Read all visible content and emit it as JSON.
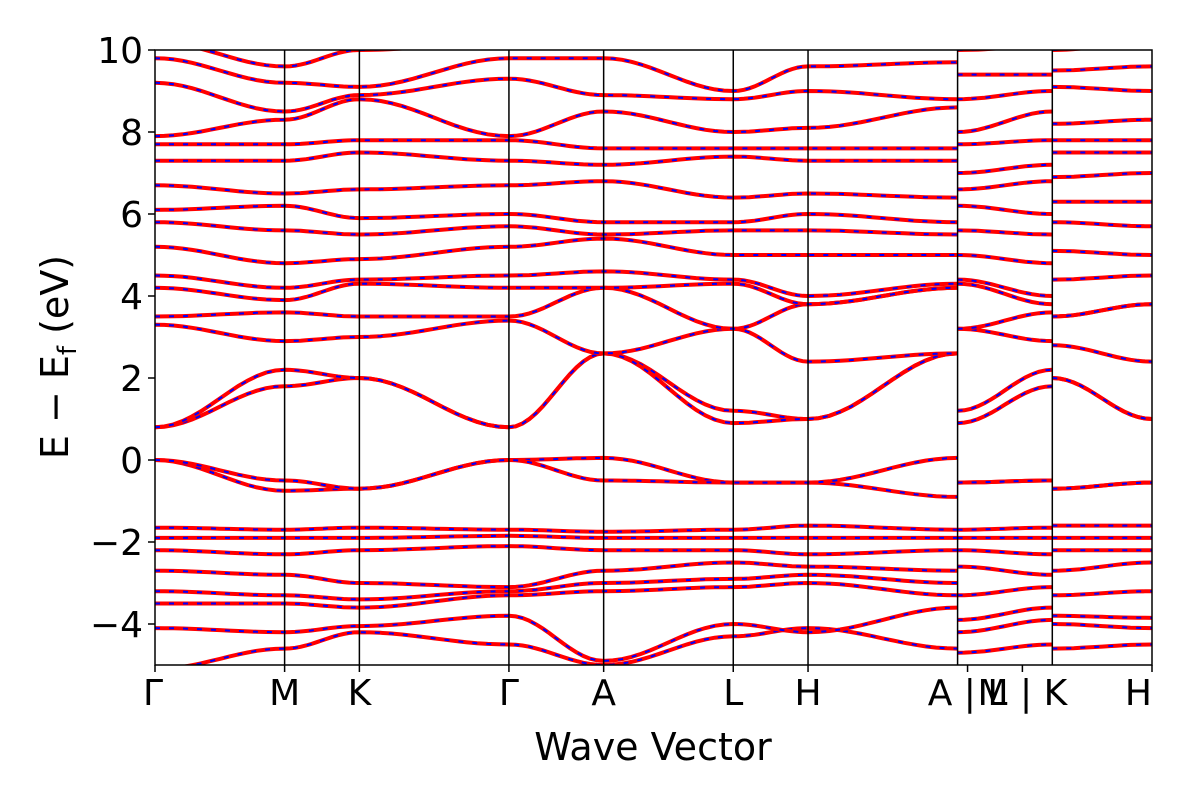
{
  "chart_data": {
    "type": "line",
    "title": "",
    "xlabel": "Wave Vector",
    "ylabel": "E − E",
    "ylabel_sub": "f",
    "ylabel_unit": " (eV)",
    "ylim": [
      -5,
      10
    ],
    "yticks": [
      {
        "value": 10,
        "label": "10"
      },
      {
        "value": 8,
        "label": "8"
      },
      {
        "value": 6,
        "label": "6"
      },
      {
        "value": 4,
        "label": "4"
      },
      {
        "value": 2,
        "label": "2"
      },
      {
        "value": 0,
        "label": "0"
      },
      {
        "value": -2,
        "label": "−2"
      },
      {
        "value": -4,
        "label": "−4"
      }
    ],
    "xlim": [
      0,
      10
    ],
    "kpoint_labels": [
      {
        "x": 0.0,
        "label": "Γ"
      },
      {
        "x": 1.3,
        "label": "M"
      },
      {
        "x": 2.05,
        "label": "K"
      },
      {
        "x": 3.55,
        "label": "Γ"
      },
      {
        "x": 4.5,
        "label": "A"
      },
      {
        "x": 5.8,
        "label": "L"
      },
      {
        "x": 6.55,
        "label": "H"
      },
      {
        "x": 8.15,
        "label": "A | L"
      },
      {
        "x": 8.7,
        "label": "M | K"
      },
      {
        "x": 10.0,
        "label": "H"
      }
    ],
    "vlines": [
      1.3,
      2.05,
      3.55,
      4.5,
      5.8,
      6.55,
      8.05,
      9.0
    ],
    "segment_breaks": [
      8.05,
      9.0
    ],
    "grid": false,
    "legend": "none",
    "series_colors": {
      "primary": "#ff0000",
      "overlay": "#0000ff"
    },
    "bands": [
      {
        "x": [
          0,
          1.3,
          2.05,
          3.55,
          4.5,
          5.8,
          6.55,
          8.05,
          8.05,
          9.0,
          9.0,
          10.0
        ],
        "y": [
          -5.1,
          -4.6,
          -4.2,
          -4.5,
          -5.0,
          -4.3,
          -4.1,
          -4.6,
          -4.7,
          -4.5,
          -4.6,
          -4.5
        ]
      },
      {
        "x": [
          0,
          1.3,
          2.05,
          3.55,
          4.5,
          5.8,
          6.55,
          8.05,
          8.05,
          9.0,
          9.0,
          10.0
        ],
        "y": [
          -4.1,
          -4.2,
          -4.05,
          -3.8,
          -4.9,
          -4.0,
          -4.2,
          -3.6,
          -4.2,
          -3.9,
          -4.0,
          -4.1
        ]
      },
      {
        "x": [
          0,
          1.3,
          2.05,
          3.55,
          4.5,
          5.8,
          6.55,
          8.05,
          8.05,
          9.0,
          9.0,
          10.0
        ],
        "y": [
          -3.5,
          -3.5,
          -3.6,
          -3.3,
          -3.2,
          -3.1,
          -3.0,
          -3.3,
          -3.9,
          -3.6,
          -3.8,
          -3.85
        ]
      },
      {
        "x": [
          0,
          1.3,
          2.05,
          3.55,
          4.5,
          5.8,
          6.55,
          8.05,
          8.05,
          9.0,
          9.0,
          10.0
        ],
        "y": [
          -3.2,
          -3.3,
          -3.4,
          -3.2,
          -3.0,
          -2.9,
          -2.8,
          -3.0,
          -3.3,
          -3.1,
          -3.3,
          -3.2
        ]
      },
      {
        "x": [
          0,
          1.3,
          2.05,
          3.55,
          4.5,
          5.8,
          6.55,
          8.05,
          8.05,
          9.0,
          9.0,
          10.0
        ],
        "y": [
          -2.7,
          -2.8,
          -3.0,
          -3.1,
          -2.7,
          -2.5,
          -2.6,
          -2.7,
          -2.6,
          -2.8,
          -2.7,
          -2.5
        ]
      },
      {
        "x": [
          0,
          1.3,
          2.05,
          3.55,
          4.5,
          5.8,
          6.55,
          8.05,
          8.05,
          9.0,
          9.0,
          10.0
        ],
        "y": [
          -2.2,
          -2.3,
          -2.2,
          -2.1,
          -2.2,
          -2.2,
          -2.3,
          -2.2,
          -2.2,
          -2.3,
          -2.2,
          -2.2
        ]
      },
      {
        "x": [
          0,
          1.3,
          2.05,
          3.55,
          4.5,
          5.8,
          6.55,
          8.05,
          8.05,
          9.0,
          9.0,
          10.0
        ],
        "y": [
          -1.9,
          -1.9,
          -1.9,
          -1.85,
          -1.9,
          -1.9,
          -1.9,
          -1.9,
          -1.9,
          -1.9,
          -1.9,
          -1.9
        ]
      },
      {
        "x": [
          0,
          1.3,
          2.05,
          3.55,
          4.5,
          5.8,
          6.55,
          8.05,
          8.05,
          9.0,
          9.0,
          10.0
        ],
        "y": [
          -1.65,
          -1.7,
          -1.65,
          -1.7,
          -1.75,
          -1.7,
          -1.6,
          -1.7,
          -1.7,
          -1.65,
          -1.6,
          -1.6
        ]
      },
      {
        "x": [
          0,
          1.3,
          2.05,
          3.55,
          4.5,
          5.8,
          6.55,
          8.05,
          8.05,
          9.0,
          9.0,
          10.0
        ],
        "y": [
          0.0,
          -0.75,
          -0.7,
          0.0,
          0.05,
          -0.55,
          -0.55,
          -0.9,
          -0.55,
          -0.5,
          -0.7,
          -0.55
        ]
      },
      {
        "x": [
          0,
          1.3,
          2.05,
          3.55,
          4.5,
          5.8,
          6.55,
          8.05,
          8.05,
          9.0,
          9.0,
          10.0
        ],
        "y": [
          0.0,
          -0.5,
          -0.7,
          0.0,
          -0.5,
          -0.55,
          -0.55,
          0.05,
          -0.55,
          -0.5,
          -0.7,
          -0.55
        ]
      },
      {
        "x": [
          0,
          1.3,
          2.05,
          3.55,
          4.5,
          5.8,
          6.55,
          8.05,
          8.05,
          9.0,
          9.0,
          10.0
        ],
        "y": [
          0.8,
          1.8,
          2.0,
          0.8,
          2.6,
          1.2,
          1.0,
          2.6,
          1.2,
          2.2,
          2.0,
          1.0
        ]
      },
      {
        "x": [
          0,
          1.3,
          2.05,
          3.55,
          4.5,
          5.8,
          6.55,
          8.05,
          8.05,
          9.0,
          9.0,
          10.0
        ],
        "y": [
          0.8,
          2.2,
          2.0,
          0.8,
          2.6,
          0.9,
          1.0,
          2.6,
          0.9,
          1.8,
          2.0,
          1.0
        ]
      },
      {
        "x": [
          0,
          1.3,
          2.05,
          3.55,
          4.5,
          5.8,
          6.55,
          8.05,
          8.05,
          9.0,
          9.0,
          10.0
        ],
        "y": [
          3.3,
          2.9,
          3.0,
          3.4,
          2.6,
          3.2,
          2.4,
          2.6,
          3.2,
          2.9,
          2.8,
          2.4
        ]
      },
      {
        "x": [
          0,
          1.3,
          2.05,
          3.55,
          4.5,
          5.8,
          6.55,
          8.05,
          8.05,
          9.0,
          9.0,
          10.0
        ],
        "y": [
          3.5,
          3.6,
          3.5,
          3.5,
          4.2,
          3.2,
          3.8,
          4.2,
          3.2,
          3.6,
          3.5,
          3.8
        ]
      },
      {
        "x": [
          0,
          1.3,
          2.05,
          3.55,
          4.5,
          5.8,
          6.55,
          8.05,
          8.05,
          9.0,
          9.0,
          10.0
        ],
        "y": [
          4.2,
          3.9,
          4.3,
          4.2,
          4.2,
          4.3,
          3.8,
          4.2,
          4.3,
          3.8,
          3.5,
          3.8
        ]
      },
      {
        "x": [
          0,
          1.3,
          2.05,
          3.55,
          4.5,
          5.8,
          6.55,
          8.05,
          8.05,
          9.0,
          9.0,
          10.0
        ],
        "y": [
          4.5,
          4.2,
          4.4,
          4.5,
          4.6,
          4.4,
          4.0,
          4.3,
          4.4,
          4.0,
          4.4,
          4.5
        ]
      },
      {
        "x": [
          0,
          1.3,
          2.05,
          3.55,
          4.5,
          5.8,
          6.55,
          8.05,
          8.05,
          9.0,
          9.0,
          10.0
        ],
        "y": [
          5.2,
          4.8,
          4.9,
          5.2,
          5.4,
          5.0,
          5.0,
          5.0,
          5.0,
          4.8,
          5.1,
          5.0
        ]
      },
      {
        "x": [
          0,
          1.3,
          2.05,
          3.55,
          4.5,
          5.8,
          6.55,
          8.05,
          8.05,
          9.0,
          9.0,
          10.0
        ],
        "y": [
          5.8,
          5.6,
          5.5,
          5.7,
          5.5,
          5.6,
          5.6,
          5.5,
          5.6,
          5.5,
          5.8,
          5.7
        ]
      },
      {
        "x": [
          0,
          1.3,
          2.05,
          3.55,
          4.5,
          5.8,
          6.55,
          8.05,
          8.05,
          9.0,
          9.0,
          10.0
        ],
        "y": [
          6.1,
          6.2,
          5.9,
          6.0,
          5.8,
          5.8,
          6.0,
          5.8,
          6.2,
          6.0,
          6.3,
          6.3
        ]
      },
      {
        "x": [
          0,
          1.3,
          2.05,
          3.55,
          4.5,
          5.8,
          6.55,
          8.05,
          8.05,
          9.0,
          9.0,
          10.0
        ],
        "y": [
          6.7,
          6.5,
          6.6,
          6.7,
          6.8,
          6.4,
          6.5,
          6.4,
          6.6,
          6.8,
          6.9,
          7.0
        ]
      },
      {
        "x": [
          0,
          1.3,
          2.05,
          3.55,
          4.5,
          5.8,
          6.55,
          8.05,
          8.05,
          9.0,
          9.0,
          10.0
        ],
        "y": [
          7.3,
          7.3,
          7.5,
          7.3,
          7.2,
          7.4,
          7.3,
          7.3,
          7.0,
          7.2,
          7.5,
          7.5
        ]
      },
      {
        "x": [
          0,
          1.3,
          2.05,
          3.55,
          4.5,
          5.8,
          6.55,
          8.05,
          8.05,
          9.0,
          9.0,
          10.0
        ],
        "y": [
          7.7,
          7.7,
          7.8,
          7.8,
          7.6,
          7.6,
          7.6,
          7.6,
          7.7,
          7.8,
          7.8,
          7.8
        ]
      },
      {
        "x": [
          0,
          1.3,
          2.05,
          3.55,
          4.5,
          5.8,
          6.55,
          8.05,
          8.05,
          9.0,
          9.0,
          10.0
        ],
        "y": [
          7.9,
          8.3,
          8.8,
          7.9,
          8.5,
          8.0,
          8.1,
          8.6,
          8.0,
          8.5,
          8.2,
          8.3
        ]
      },
      {
        "x": [
          0,
          1.3,
          2.05,
          3.55,
          4.5,
          5.8,
          6.55,
          8.05,
          8.05,
          9.0,
          9.0,
          10.0
        ],
        "y": [
          9.2,
          8.5,
          8.9,
          9.3,
          8.9,
          8.8,
          9.0,
          8.8,
          8.8,
          9.0,
          9.1,
          9.0
        ]
      },
      {
        "x": [
          0,
          1.3,
          2.05,
          3.55,
          4.5,
          5.8,
          6.55,
          8.05,
          8.05,
          9.0,
          9.0,
          10.0
        ],
        "y": [
          9.8,
          9.2,
          9.1,
          9.8,
          9.8,
          9.0,
          9.6,
          9.7,
          9.4,
          9.4,
          9.5,
          9.6
        ]
      },
      {
        "x": [
          0,
          1.3,
          2.05,
          3.55,
          4.5,
          5.8,
          6.55,
          8.05,
          8.05,
          9.0,
          9.0,
          10.0
        ],
        "y": [
          10.2,
          9.6,
          10.0,
          10.2,
          10.3,
          10.1,
          10.2,
          10.2,
          10.0,
          10.1,
          10.0,
          10.2
        ]
      }
    ]
  }
}
